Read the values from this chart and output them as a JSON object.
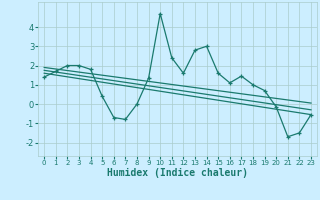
{
  "title": "",
  "xlabel": "Humidex (Indice chaleur)",
  "background_color": "#cceeff",
  "line_color": "#1a7a6e",
  "xlim": [
    -0.5,
    23.5
  ],
  "ylim": [
    -2.7,
    5.3
  ],
  "xticks": [
    0,
    1,
    2,
    3,
    4,
    5,
    6,
    7,
    8,
    9,
    10,
    11,
    12,
    13,
    14,
    15,
    16,
    17,
    18,
    19,
    20,
    21,
    22,
    23
  ],
  "yticks": [
    -2,
    -1,
    0,
    1,
    2,
    3,
    4
  ],
  "main_x": [
    0,
    1,
    2,
    3,
    4,
    5,
    6,
    7,
    8,
    9,
    10,
    11,
    12,
    13,
    14,
    15,
    16,
    17,
    18,
    19,
    20,
    21,
    22,
    23
  ],
  "main_y": [
    1.4,
    1.7,
    2.0,
    2.0,
    1.8,
    0.4,
    -0.7,
    -0.8,
    0.0,
    1.35,
    4.7,
    2.4,
    1.6,
    2.8,
    3.0,
    1.6,
    1.1,
    1.45,
    1.0,
    0.7,
    -0.15,
    -1.7,
    -1.5,
    -0.55
  ],
  "trend1_x": [
    0,
    23
  ],
  "trend1_y": [
    1.9,
    0.05
  ],
  "trend2_x": [
    0,
    23
  ],
  "trend2_y": [
    1.75,
    -0.3
  ],
  "trend3_x": [
    0,
    23
  ],
  "trend3_y": [
    1.6,
    -0.55
  ],
  "grid_color": "#aacccc",
  "fontsize_label": 7,
  "fontsize_tick": 6
}
